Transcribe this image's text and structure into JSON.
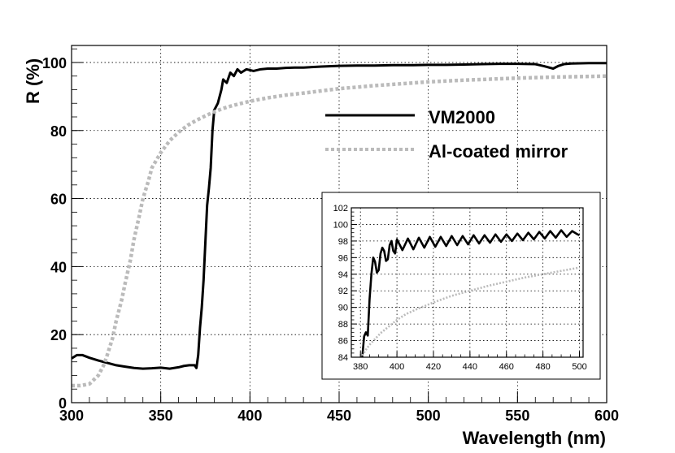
{
  "chart_data": [
    {
      "type": "line",
      "title": "",
      "xlabel": "Wavelength (nm)",
      "ylabel": "R (%)",
      "xlim": [
        300,
        600
      ],
      "ylim": [
        0,
        105
      ],
      "xticks": [
        300,
        350,
        400,
        450,
        500,
        550,
        600
      ],
      "yticks": [
        0,
        20,
        40,
        60,
        80,
        100
      ],
      "grid": true,
      "legend_position": "upper-right",
      "series": [
        {
          "name": "VM2000",
          "color": "#000000",
          "style": "solid",
          "x": [
            300,
            303,
            306,
            310,
            315,
            320,
            325,
            330,
            335,
            340,
            345,
            350,
            355,
            360,
            363,
            366,
            369,
            370,
            371,
            372,
            373,
            374,
            375,
            376,
            377,
            378,
            379,
            380,
            381,
            382,
            383,
            384,
            385,
            387,
            389,
            391,
            393,
            395,
            398,
            402,
            406,
            410,
            415,
            420,
            425,
            430,
            440,
            450,
            460,
            470,
            480,
            490,
            500,
            510,
            520,
            530,
            540,
            550,
            560,
            565,
            570,
            573,
            576,
            580,
            590,
            600
          ],
          "y": [
            13,
            14,
            14,
            13.2,
            12.4,
            11.7,
            11,
            10.6,
            10.2,
            10,
            10.1,
            10.3,
            10,
            10.4,
            10.8,
            11,
            11,
            10.2,
            14,
            22,
            28,
            36,
            47,
            58,
            63,
            69,
            80,
            86,
            87,
            88,
            90,
            92,
            95,
            94,
            97,
            96,
            98,
            97,
            98,
            97.5,
            98,
            98.2,
            98.2,
            98.4,
            98.5,
            98.5,
            98.8,
            99,
            99.1,
            99.1,
            99.2,
            99.2,
            99.3,
            99.3,
            99.4,
            99.5,
            99.6,
            99.6,
            99.5,
            98.9,
            98.2,
            99,
            99.5,
            99.7,
            99.8,
            99.8
          ]
        },
        {
          "name": "Al-coated mirror",
          "color": "#bbbbbb",
          "style": "dashed",
          "x": [
            300,
            305,
            310,
            315,
            318,
            320,
            323,
            325,
            328,
            330,
            333,
            335,
            338,
            340,
            343,
            345,
            350,
            355,
            360,
            365,
            370,
            375,
            380,
            385,
            390,
            400,
            410,
            420,
            430,
            450,
            470,
            500,
            520,
            550,
            570,
            600
          ],
          "y": [
            5,
            5,
            5.5,
            8,
            11,
            14,
            19,
            24,
            30,
            35,
            42,
            48,
            55,
            60,
            65,
            69,
            73.5,
            77,
            79.5,
            81.5,
            83,
            84.3,
            85.5,
            86.5,
            87.3,
            88.6,
            89.6,
            90.4,
            91,
            92.3,
            93.2,
            94.3,
            94.8,
            95.4,
            95.7,
            96
          ]
        }
      ]
    },
    {
      "type": "line",
      "title": "",
      "xlabel": "",
      "ylabel": "",
      "xlim": [
        375,
        502
      ],
      "ylim": [
        84,
        102
      ],
      "xticks": [
        380,
        400,
        420,
        440,
        460,
        480,
        500
      ],
      "yticks": [
        84,
        86,
        88,
        90,
        92,
        94,
        96,
        98,
        100,
        102
      ],
      "grid": true,
      "series": [
        {
          "name": "VM2000",
          "color": "#000000",
          "style": "solid",
          "x": [
            381,
            382,
            383,
            384,
            385,
            386,
            387,
            388,
            389,
            390,
            391,
            392,
            393,
            394,
            395,
            396,
            397,
            398,
            399,
            400,
            403,
            406,
            409,
            412,
            415,
            418,
            421,
            424,
            427,
            430,
            433,
            436,
            439,
            442,
            445,
            448,
            451,
            454,
            457,
            460,
            463,
            466,
            469,
            472,
            475,
            478,
            481,
            484,
            487,
            490,
            493,
            496,
            499,
            500
          ],
          "y": [
            84,
            86.5,
            87,
            86.6,
            91,
            94,
            96,
            95.5,
            94.2,
            94.5,
            96.5,
            97.2,
            96.8,
            95.6,
            95.8,
            97.5,
            98,
            96.8,
            96.5,
            98.2,
            96.9,
            98.3,
            97,
            98.4,
            97.2,
            98.5,
            97.3,
            98.5,
            97.4,
            98.6,
            97.5,
            98.6,
            97.6,
            98.7,
            97.7,
            98.7,
            97.8,
            98.8,
            97.9,
            98.8,
            98,
            98.9,
            98.1,
            99,
            98.2,
            99.1,
            98.3,
            99.2,
            98.4,
            99.3,
            98.5,
            99.2,
            98.8,
            98.7
          ]
        },
        {
          "name": "Al-coated mirror",
          "color": "#bbbbbb",
          "style": "dashed",
          "x": [
            381,
            383,
            385,
            388,
            391,
            395,
            400,
            405,
            410,
            420,
            430,
            440,
            450,
            460,
            470,
            480,
            490,
            500
          ],
          "y": [
            84.2,
            84.9,
            85.5,
            86.2,
            86.9,
            87.6,
            88.5,
            89.2,
            89.7,
            90.6,
            91.4,
            92,
            92.6,
            93.1,
            93.6,
            94,
            94.4,
            94.8
          ]
        }
      ]
    }
  ]
}
